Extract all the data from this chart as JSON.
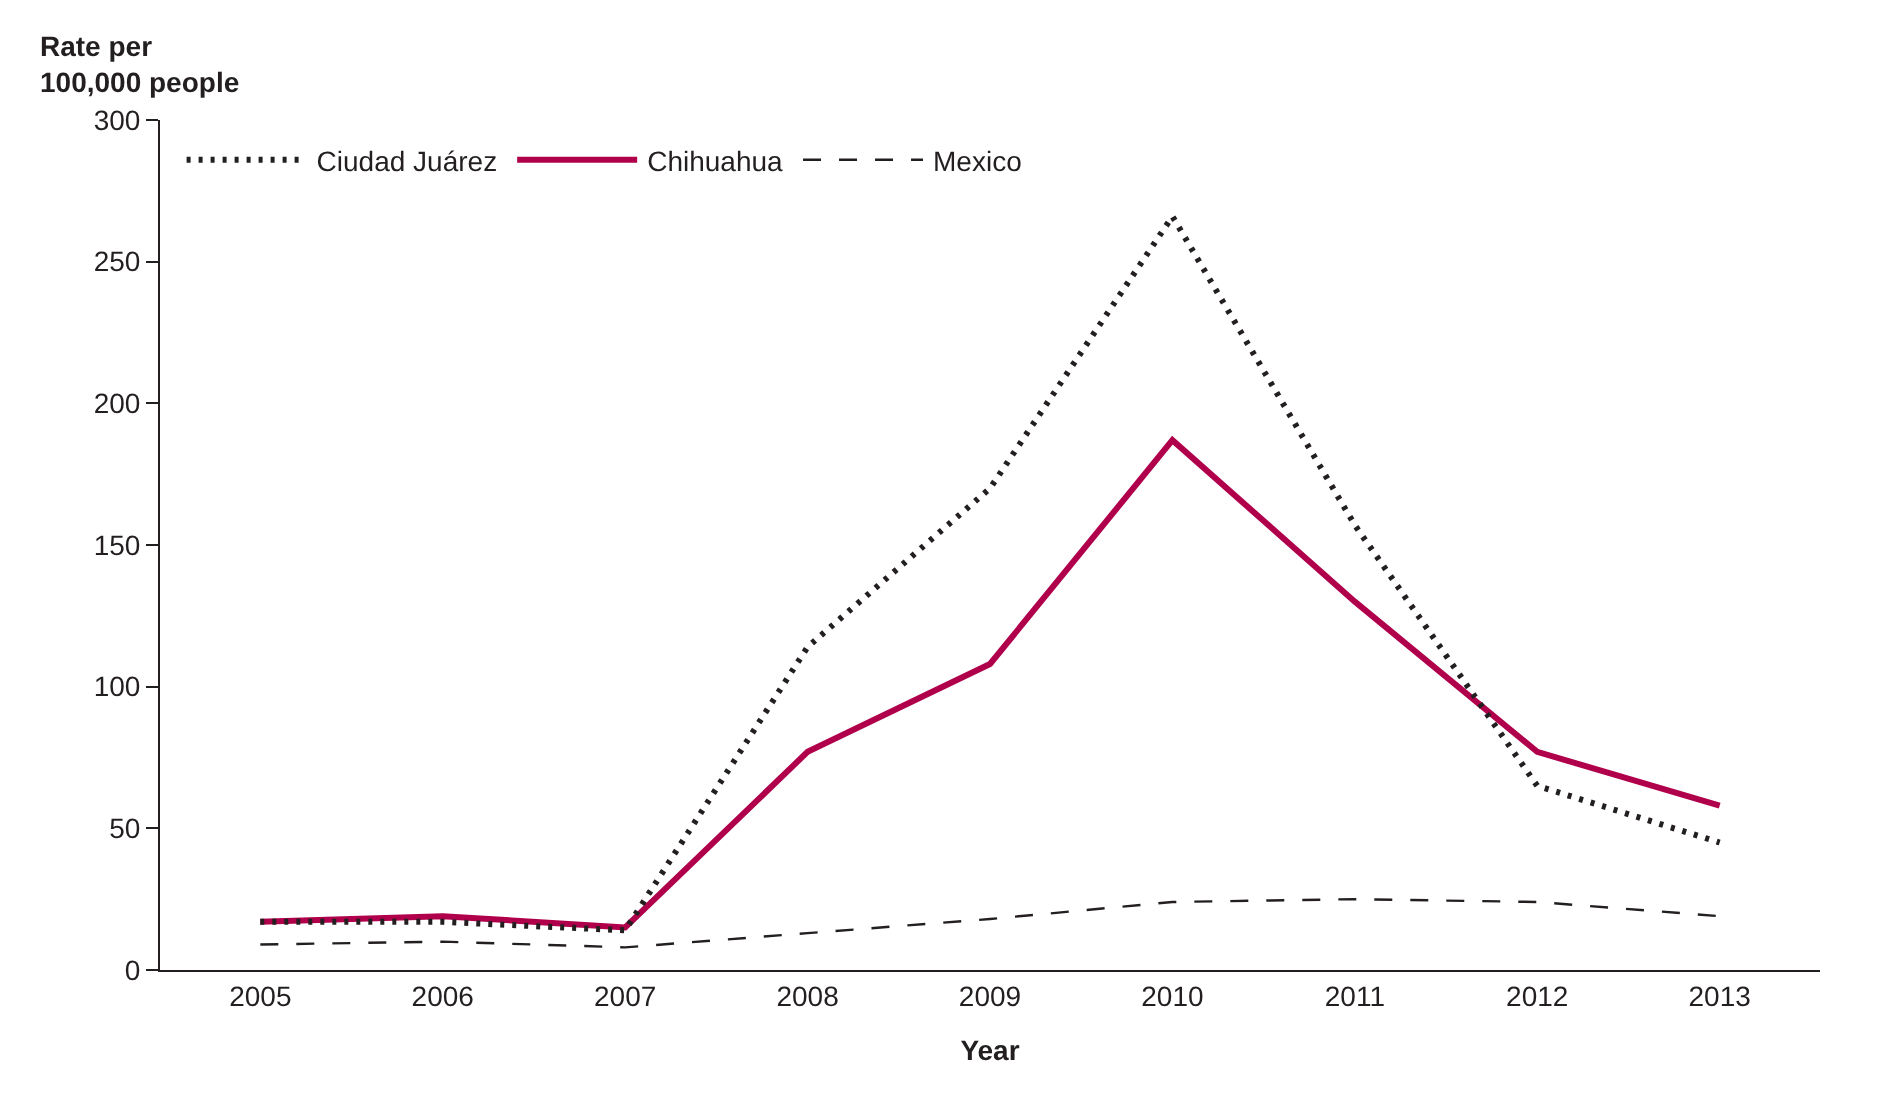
{
  "chart_data": {
    "type": "line",
    "ylabel": "Rate per\n100,000 people",
    "xlabel": "Year",
    "categories": [
      "2005",
      "2006",
      "2007",
      "2008",
      "2009",
      "2010",
      "2011",
      "2012",
      "2013"
    ],
    "series": [
      {
        "name": "Ciudad Juárez",
        "color": "#231f20",
        "line_style": "dotted",
        "values": [
          17,
          17,
          14,
          114,
          170,
          266,
          157,
          65,
          45
        ]
      },
      {
        "name": "Chihuahua",
        "color": "#b0004b",
        "line_style": "solid",
        "values": [
          17,
          19,
          15,
          77,
          108,
          187,
          130,
          77,
          58
        ]
      },
      {
        "name": "Mexico",
        "color": "#231f20",
        "line_style": "dashed",
        "values": [
          9,
          10,
          8,
          13,
          18,
          24,
          25,
          24,
          19
        ]
      }
    ],
    "ylim": [
      0,
      300
    ],
    "yticks": [
      0,
      50,
      100,
      150,
      200,
      250,
      300
    ],
    "legend": "top left",
    "marker": "none"
  }
}
